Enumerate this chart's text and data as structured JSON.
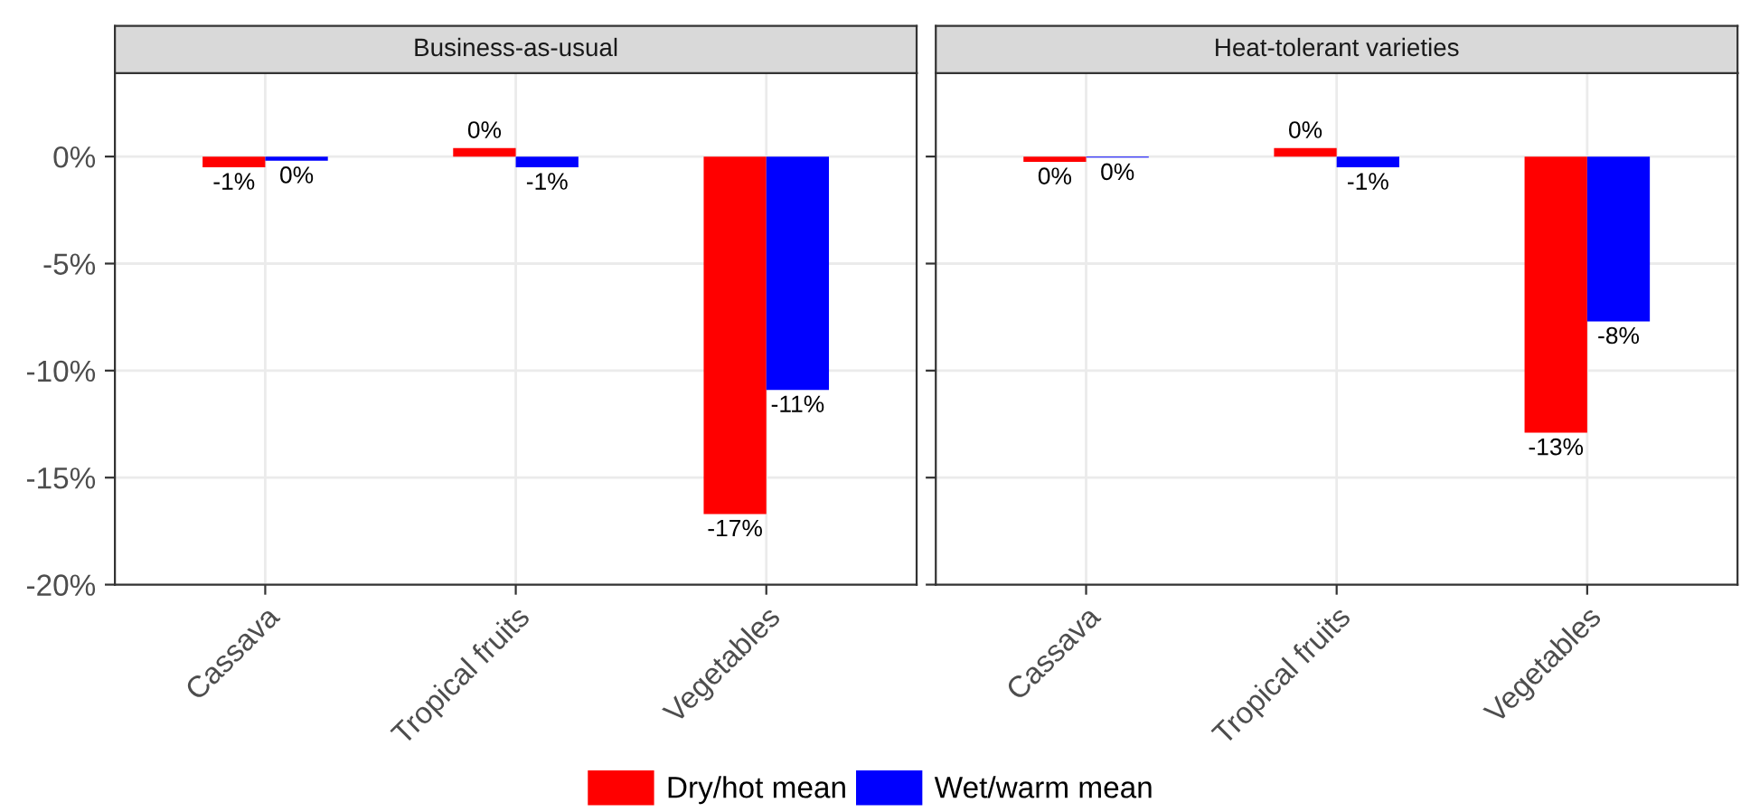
{
  "chart_data": [
    {
      "type": "bar",
      "title": "Business-as-usual",
      "categories": [
        "Cassava",
        "Tropical fruits",
        "Vegetables"
      ],
      "series": [
        {
          "color": "#ff0000",
          "values": [
            -0.5,
            0.4,
            -16.7
          ],
          "value_labels": [
            "-1%",
            "0%",
            "-17%"
          ]
        },
        {
          "color": "#0000ff",
          "values": [
            -0.2,
            -0.5,
            -10.9
          ],
          "value_labels": [
            "0%",
            "-1%",
            "-11%"
          ]
        }
      ],
      "ylim": [
        -20,
        3.9
      ],
      "yticks": [
        {
          "value": 0,
          "label": "0%"
        },
        {
          "value": -5,
          "label": "-5%"
        },
        {
          "value": -10,
          "label": "-10%"
        },
        {
          "value": -15,
          "label": "-15%"
        },
        {
          "value": -20,
          "label": "-20%"
        }
      ],
      "grid": true
    },
    {
      "type": "bar",
      "title": "Heat-tolerant varieties",
      "categories": [
        "Cassava",
        "Tropical fruits",
        "Vegetables"
      ],
      "series": [
        {
          "name": "Dry/hot mean",
          "color": "#ff0000",
          "values": [
            -0.25,
            0.4,
            -12.9
          ],
          "value_labels": [
            "0%",
            "0%",
            "-13%"
          ]
        },
        {
          "name": "Wet/warm mean",
          "color": "#0000ff",
          "values": [
            -0.05,
            -0.5,
            -7.7
          ],
          "value_labels": [
            "0%",
            "-1%",
            "-8%"
          ]
        }
      ],
      "ylim": [
        -20,
        3.9
      ],
      "yticks": [
        0,
        -5,
        -10,
        -15,
        -20
      ],
      "grid": true,
      "legend": "bottom",
      "tick_labels": "x"
    }
  ]
}
